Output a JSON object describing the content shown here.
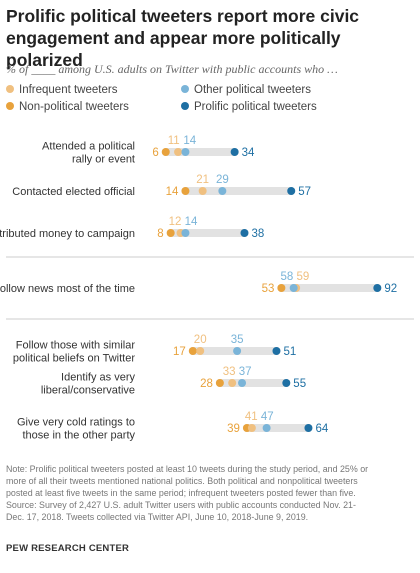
{
  "title": "Prolific political tweeters report more civic engagement and appear more politically polarized",
  "subtitle": "% of ____ among U.S. adults on Twitter with public accounts who …",
  "colors": {
    "infrequent": "#F0C080",
    "non_political": "#E8A23C",
    "other_political": "#7AB4D8",
    "prolific_political": "#1E6FA3",
    "track": "#E2E2E2",
    "divider": "#CCCCCC"
  },
  "legend": [
    {
      "label": "Infrequent tweeters",
      "color": "#F0C080"
    },
    {
      "label": "Other political tweeters",
      "color": "#7AB4D8"
    },
    {
      "label": "Non-political tweeters",
      "color": "#E8A23C"
    },
    {
      "label": "Prolific political tweeters",
      "color": "#1E6FA3"
    }
  ],
  "chart_data": {
    "type": "scatter",
    "subtype": "dot plot",
    "series": [
      {
        "name": "Infrequent tweeters",
        "color": "#F0C080"
      },
      {
        "name": "Non-political tweeters",
        "color": "#E8A23C"
      },
      {
        "name": "Other political tweeters",
        "color": "#7AB4D8"
      },
      {
        "name": "Prolific political tweeters",
        "color": "#1E6FA3"
      }
    ],
    "rows": [
      {
        "label": [
          "Attended a political",
          "rally or event"
        ],
        "values": [
          11,
          6,
          14,
          34
        ]
      },
      {
        "label": [
          "Contacted elected official"
        ],
        "values": [
          21,
          14,
          29,
          57
        ]
      },
      {
        "label": [
          "Contributed money to campaign"
        ],
        "values": [
          12,
          8,
          14,
          38
        ]
      },
      {
        "label": [
          "Follow news most of the time"
        ],
        "values": [
          59,
          53,
          58,
          92
        ]
      },
      {
        "label": [
          "Follow those with similar",
          "political beliefs on Twitter"
        ],
        "values": [
          20,
          17,
          35,
          51
        ]
      },
      {
        "label": [
          "Identify as very",
          "liberal/conservative"
        ],
        "values": [
          33,
          28,
          37,
          55
        ]
      },
      {
        "label": [
          "Give very cold ratings to",
          "those in the other party"
        ],
        "values": [
          41,
          39,
          47,
          64
        ]
      }
    ]
  },
  "note": [
    "Note: Prolific political tweeters posted at least 10 tweets during the study period, and 25% or",
    "more of all their tweets mentioned national politics. Both political and nonpolitical tweeters",
    "posted at least five tweets in the same period; infrequent tweeters posted fewer than five.",
    "Source: Survey of 2,427 U.S. adult Twitter users with public accounts conducted Nov. 21-",
    "Dec. 17, 2018. Tweets collected via Twitter API, June 10, 2018-June 9, 2019."
  ],
  "footer": "PEW RESEARCH CENTER"
}
